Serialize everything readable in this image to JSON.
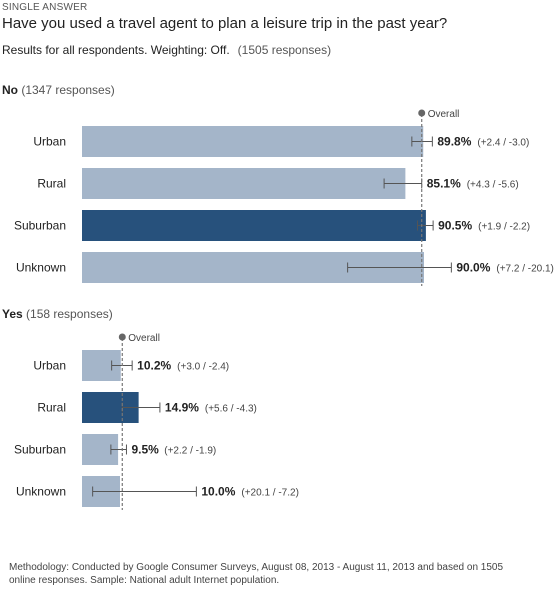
{
  "header": {
    "question_type": "SINGLE ANSWER",
    "question": "Have you used a travel agent to plan a leisure trip in the past year?",
    "results_text": "Results for all respondents. Weighting: Off.",
    "responses_text": "(1505 responses)"
  },
  "footer": {
    "methodology": "Methodology: Conducted by Google Consumer Surveys, August 08, 2013 - August 11, 2013 and based on 1505 online responses. Sample: National adult Internet population."
  },
  "colors": {
    "bar": "#a4b5c9",
    "bar_highlight": "#27517c",
    "overall_line": "#777777",
    "error_bar": "#555555"
  },
  "chart_data": [
    {
      "type": "bar",
      "orientation": "horizontal",
      "title": "No",
      "subtitle": "(1347 responses)",
      "overall_label": "Overall",
      "overall_value": 89.4,
      "xlim": [
        0,
        100
      ],
      "categories": [
        "Urban",
        "Rural",
        "Suburban",
        "Unknown"
      ],
      "values": [
        89.8,
        85.1,
        90.5,
        90.0
      ],
      "value_labels": [
        "89.8%",
        "85.1%",
        "90.5%",
        "90.0%"
      ],
      "error_labels": [
        "(+2.4 / -3.0)",
        "(+4.3 / -5.6)",
        "(+1.9 / -2.2)",
        "(+7.2 / -20.1)"
      ],
      "error_plus": [
        2.4,
        4.3,
        1.9,
        7.2
      ],
      "error_minus": [
        3.0,
        5.6,
        2.2,
        20.1
      ],
      "highlight_index": 2
    },
    {
      "type": "bar",
      "orientation": "horizontal",
      "title": "Yes",
      "subtitle": "(158 responses)",
      "overall_label": "Overall",
      "overall_value": 10.6,
      "xlim": [
        0,
        100
      ],
      "categories": [
        "Urban",
        "Rural",
        "Suburban",
        "Unknown"
      ],
      "values": [
        10.2,
        14.9,
        9.5,
        10.0
      ],
      "value_labels": [
        "10.2%",
        "14.9%",
        "9.5%",
        "10.0%"
      ],
      "error_labels": [
        "(+3.0 / -2.4)",
        "(+5.6 / -4.3)",
        "(+2.2 / -1.9)",
        "(+20.1 / -7.2)"
      ],
      "error_plus": [
        3.0,
        5.6,
        2.2,
        20.1
      ],
      "error_minus": [
        2.4,
        4.3,
        1.9,
        7.2
      ],
      "highlight_index": 1
    }
  ]
}
